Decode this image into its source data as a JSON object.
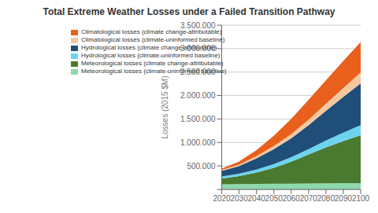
{
  "chart_data": {
    "type": "area",
    "title": "Total Extreme Weather Losses under a Failed Transition Pathway",
    "y_label": "Losses (2015 $M)",
    "stacked": true,
    "grid": true,
    "legend": "upper left",
    "x": [
      2020,
      2030,
      2040,
      2050,
      2060,
      2070,
      2080,
      2090,
      2100
    ],
    "xlim": [
      2020,
      2100
    ],
    "xticks": [
      2020,
      2030,
      2040,
      2050,
      2060,
      2070,
      2080,
      2090,
      2100
    ],
    "ylim": [
      0,
      3500000
    ],
    "yticks": [
      {
        "value": 0,
        "label": ""
      },
      {
        "value": 500000,
        "label": "500.000"
      },
      {
        "value": 1000000,
        "label": "1.000.000"
      },
      {
        "value": 1500000,
        "label": "1.500.000"
      },
      {
        "value": 2000000,
        "label": "2.000.000"
      },
      {
        "value": 2500000,
        "label": "2.500.000"
      },
      {
        "value": 3000000,
        "label": "3.000.000"
      },
      {
        "value": 3500000,
        "label": "3.500.000"
      }
    ],
    "series": [
      {
        "name": "Meteorological losses (climate-uninformed baseline)",
        "color": "#8FD9B0",
        "values": [
          110000,
          115000,
          118000,
          120000,
          122000,
          125000,
          128000,
          132000,
          135000
        ]
      },
      {
        "name": "Meteorological losses (climate change-attributable)",
        "color": "#4a7a30",
        "values": [
          120000,
          170000,
          240000,
          340000,
          470000,
          620000,
          770000,
          900000,
          1020000
        ]
      },
      {
        "name": "Hydrological losses (climate-uninformed baseline)",
        "color": "#6DD4F0",
        "values": [
          45000,
          50000,
          65000,
          80000,
          95000,
          115000,
          145000,
          180000,
          215000
        ]
      },
      {
        "name": "Hydrological losses (climate change-attributable)",
        "color": "#1f4e79",
        "values": [
          120000,
          165000,
          240000,
          320000,
          400000,
          510000,
          630000,
          760000,
          890000
        ]
      },
      {
        "name": "Climatological losses (climate-uninformed baseline)",
        "color": "#F5C8A0",
        "values": [
          18000,
          28000,
          45000,
          65000,
          88000,
          118000,
          152000,
          190000,
          232000
        ]
      },
      {
        "name": "Climatological losses (climate change-attributable)",
        "color": "#E8601C",
        "values": [
          30000,
          65000,
          130000,
          220000,
          330000,
          420000,
          500000,
          575000,
          650000
        ]
      }
    ]
  }
}
